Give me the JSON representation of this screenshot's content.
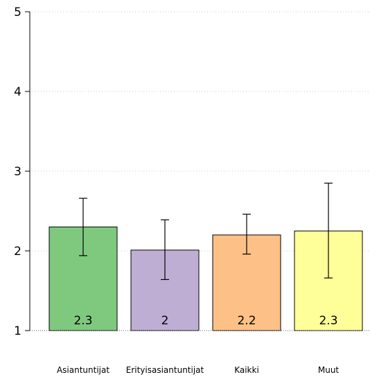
{
  "chart_data": {
    "type": "bar",
    "categories": [
      "Asiantuntijat",
      "Erityisasiantuntijat",
      "Kaikki",
      "Muut"
    ],
    "values": [
      2.3,
      2.01,
      2.2,
      2.25
    ],
    "data_labels": [
      "2.3",
      "2",
      "2.2",
      "2.3"
    ],
    "error_low": [
      1.94,
      1.64,
      1.96,
      1.66
    ],
    "error_high": [
      2.66,
      2.39,
      2.46,
      2.85
    ],
    "colors": [
      "#7fc97f",
      "#beaed4",
      "#fdc086",
      "#ffff99"
    ],
    "ylim": [
      1,
      5
    ],
    "yticks": [
      1,
      2,
      3,
      4,
      5
    ],
    "title": "",
    "xlabel": "",
    "ylabel": "",
    "grid": "horizontal dotted",
    "legend": "none"
  }
}
